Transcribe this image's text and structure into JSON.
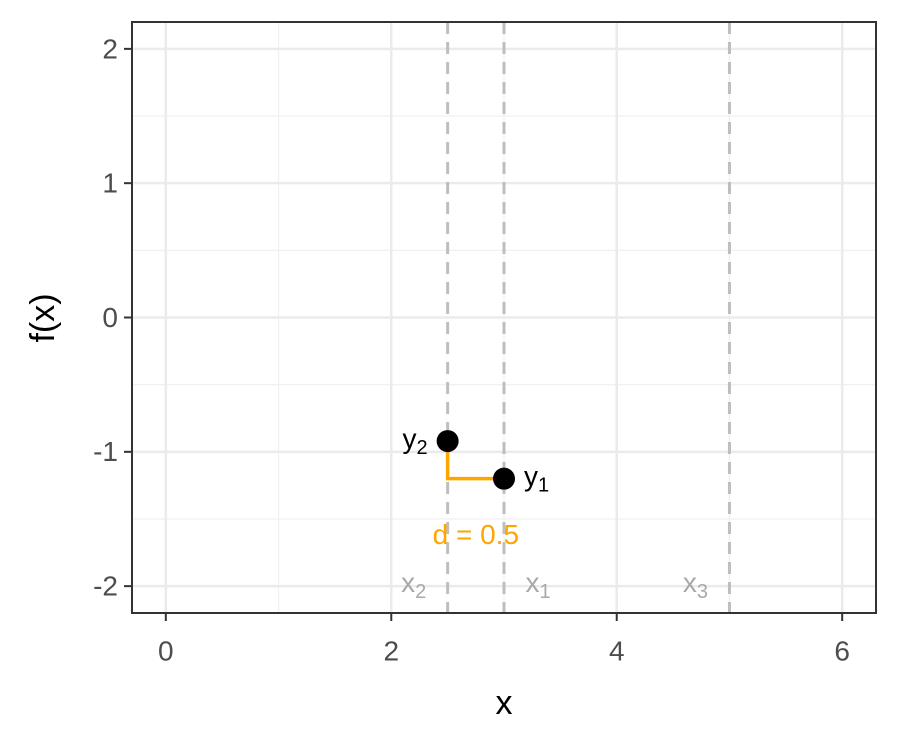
{
  "chart_data": {
    "type": "scatter",
    "xlabel": "x",
    "ylabel": "f(x)",
    "xlim": [
      -0.3,
      6.3
    ],
    "ylim": [
      -2.2,
      2.2
    ],
    "xticks": [
      0,
      2,
      4,
      6
    ],
    "yticks": [
      -2,
      -1,
      0,
      1,
      2
    ],
    "x_minor_grid": [
      1,
      3,
      5
    ],
    "y_minor_grid": [
      -1.5,
      -0.5,
      0.5,
      1.5
    ],
    "grid": true,
    "points": [
      {
        "name": "y",
        "sub": "1",
        "x": 3,
        "y": -1.2,
        "color": "#000000"
      },
      {
        "name": "y",
        "sub": "2",
        "x": 2.5,
        "y": -0.92,
        "color": "#000000"
      }
    ],
    "vlines": [
      {
        "name": "x",
        "sub": "1",
        "x": 3
      },
      {
        "name": "x",
        "sub": "2",
        "x": 2.5
      },
      {
        "name": "x",
        "sub": "3",
        "x": 5
      }
    ],
    "vline_color": "#bebebe",
    "connector_color": "#ffa500",
    "annotation": "d = 0.5"
  }
}
